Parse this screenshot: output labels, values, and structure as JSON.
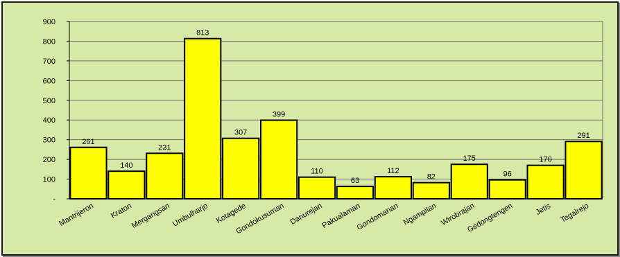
{
  "chart_data": {
    "type": "bar",
    "title": "",
    "xlabel": "",
    "ylabel": "",
    "categories": [
      "Mantrijeron",
      "Kraton",
      "Mergangsan",
      "Umbulharjo",
      "Kotagede",
      "Gondokusuman",
      "Danurejan",
      "Pakualaman",
      "Gondomanan",
      "Ngampilan",
      "Wirobrajan",
      "Gedongtengen",
      "Jetis",
      "Tegalrejo"
    ],
    "values": [
      261,
      140,
      231,
      813,
      307,
      399,
      110,
      63,
      112,
      82,
      175,
      96,
      170,
      291
    ],
    "value_labels": [
      "261",
      "140",
      "231",
      "813",
      "307",
      "399",
      "110",
      "63",
      "112",
      "82",
      "175",
      "96",
      "170",
      "291"
    ],
    "ylim": [
      0,
      900
    ],
    "y_ticks": [
      0,
      100,
      200,
      300,
      400,
      500,
      600,
      700,
      800,
      900
    ],
    "y_tick_labels": [
      "-",
      "100",
      "200",
      "300",
      "400",
      "500",
      "600",
      "700",
      "800",
      "900"
    ],
    "grid": true,
    "bar_color": "#ffff00",
    "bar_edge_color": "#000000",
    "background_color": "#d6e9a6"
  }
}
